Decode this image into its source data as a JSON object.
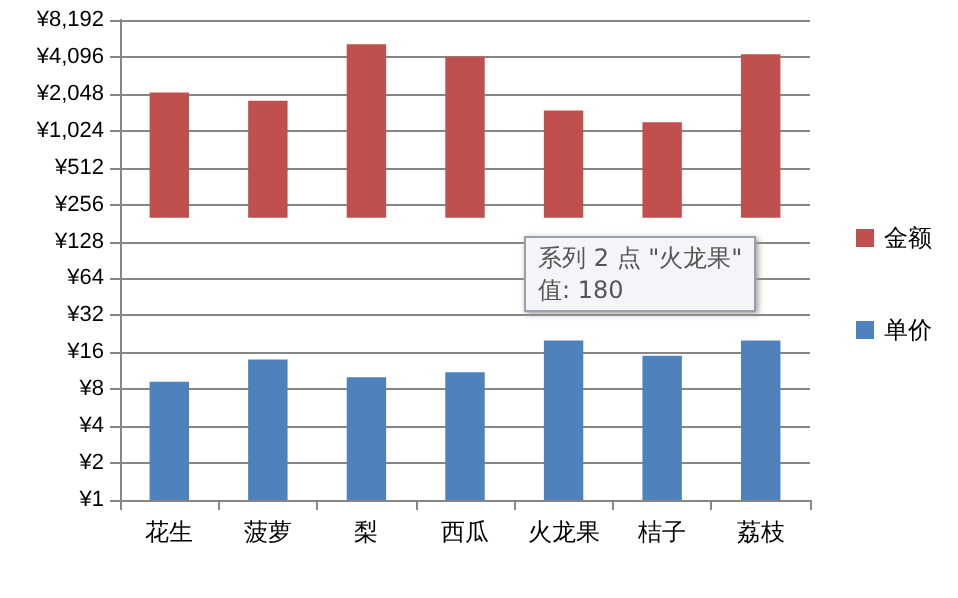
{
  "chart_data": {
    "type": "bar",
    "categories": [
      "花生",
      "菠萝",
      "梨",
      "西瓜",
      "火龙果",
      "桔子",
      "荔枝"
    ],
    "series": [
      {
        "name": "金额",
        "color": "#c0504d",
        "base": [
          200,
          200,
          200,
          200,
          200,
          200,
          200
        ],
        "values": [
          1900,
          1600,
          5000,
          3900,
          1300,
          1000,
          4100
        ]
      },
      {
        "name": "单价",
        "color": "#4f81bd",
        "values": [
          9.2,
          14,
          10,
          11,
          20,
          15,
          20
        ]
      }
    ],
    "log": true,
    "ylim": [
      1,
      8192
    ],
    "yticks": [
      {
        "value": 1,
        "label": "¥1"
      },
      {
        "value": 2,
        "label": "¥2"
      },
      {
        "value": 4,
        "label": "¥4"
      },
      {
        "value": 8,
        "label": "¥8"
      },
      {
        "value": 16,
        "label": "¥16"
      },
      {
        "value": 32,
        "label": "¥32"
      },
      {
        "value": 64,
        "label": "¥64"
      },
      {
        "value": 128,
        "label": "¥128"
      },
      {
        "value": 256,
        "label": "¥256"
      },
      {
        "value": 512,
        "label": "¥512"
      },
      {
        "value": 1024,
        "label": "¥1,024"
      },
      {
        "value": 2048,
        "label": "¥2,048"
      },
      {
        "value": 4096,
        "label": "¥4,096"
      },
      {
        "value": 8192,
        "label": "¥8,192"
      }
    ],
    "grid": "y",
    "legend": "right",
    "annotations": [
      "系列 2 点 \"火龙果\"",
      "值: 180"
    ]
  }
}
